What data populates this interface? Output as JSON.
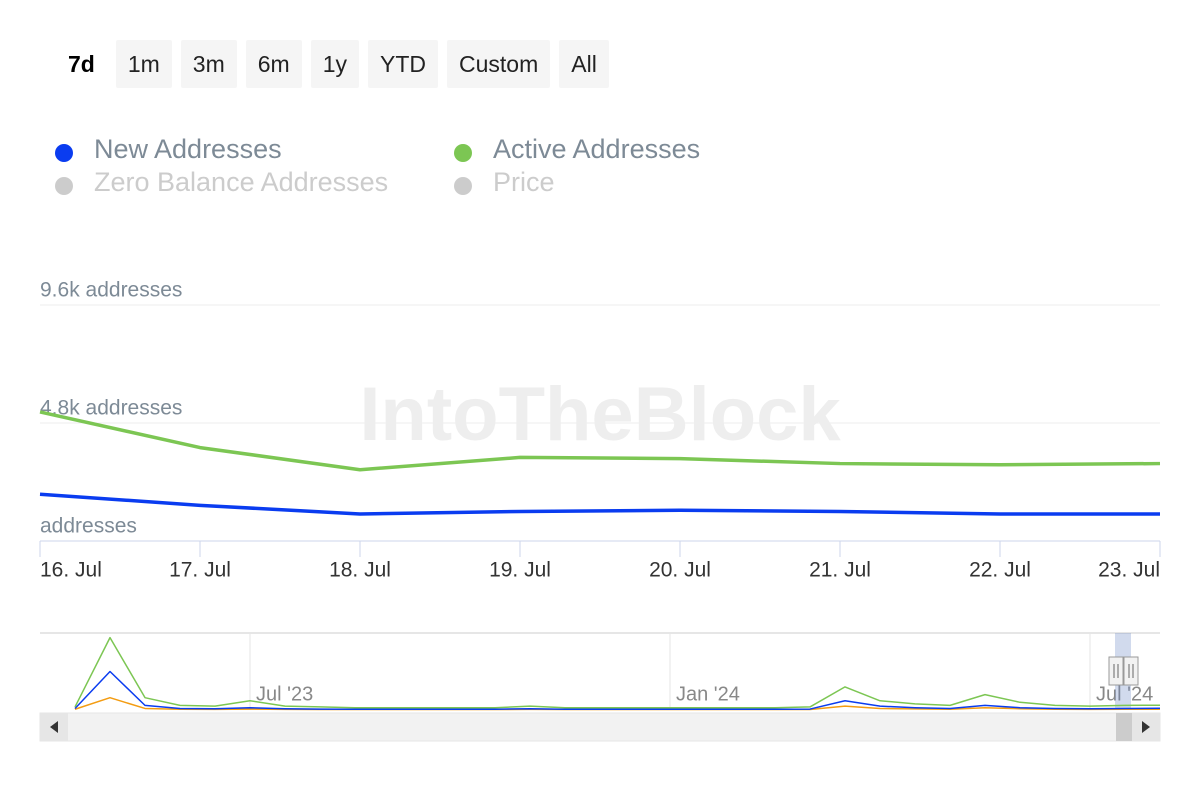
{
  "range_selector": {
    "buttons": [
      "7d",
      "1m",
      "3m",
      "6m",
      "1y",
      "YTD",
      "Custom",
      "All"
    ],
    "selected": 0
  },
  "chart_data": [
    {
      "type": "line",
      "watermark": "IntoTheBlock",
      "categories": [
        "16. Jul",
        "17. Jul",
        "18. Jul",
        "19. Jul",
        "20. Jul",
        "21. Jul",
        "22. Jul",
        "23. Jul"
      ],
      "series": [
        {
          "name": "New Addresses",
          "color": "#0a3cf0",
          "values": [
            1900,
            1450,
            1100,
            1200,
            1250,
            1200,
            1100,
            1100
          ]
        },
        {
          "name": "Active Addresses",
          "color": "#7cc653",
          "values": [
            5250,
            3800,
            2900,
            3400,
            3350,
            3150,
            3100,
            3150
          ]
        }
      ],
      "hidden_series": [
        {
          "name": "Zero Balance Addresses",
          "color": "#cccccc"
        },
        {
          "name": "Price",
          "color": "#cccccc"
        }
      ],
      "ylim": [
        0,
        9600
      ],
      "yticks": [
        {
          "value": 0,
          "label": "addresses"
        },
        {
          "value": 4800,
          "label": "4.8k addresses"
        },
        {
          "value": 9600,
          "label": "9.6k addresses"
        }
      ],
      "grid": true
    },
    {
      "type": "line",
      "categories": [
        null,
        null,
        null,
        null,
        null,
        null,
        "Jul '23",
        null,
        null,
        null,
        null,
        null,
        null,
        null,
        null,
        null,
        null,
        null,
        "Jan '24",
        null,
        null,
        null,
        null,
        null,
        null,
        null,
        null,
        null,
        null,
        null,
        "Jul '24",
        null,
        null
      ],
      "series": [
        {
          "color": "#f39c12",
          "values": [
            null,
            500,
            8000,
            1000,
            500,
            400,
            600,
            400,
            300,
            300,
            300,
            300,
            300,
            300,
            400,
            300,
            300,
            300,
            300,
            300,
            300,
            300,
            300,
            2500,
            1000,
            700,
            500,
            1500,
            800,
            500,
            400,
            500,
            500
          ]
        },
        {
          "color": "#0a3cf0",
          "values": [
            null,
            1000,
            25000,
            3000,
            1000,
            800,
            1500,
            800,
            600,
            500,
            500,
            500,
            500,
            500,
            800,
            500,
            500,
            500,
            500,
            500,
            500,
            500,
            600,
            6000,
            2500,
            1500,
            1000,
            3000,
            1500,
            1000,
            800,
            1000,
            1100
          ]
        },
        {
          "color": "#7cc653",
          "values": [
            null,
            2000,
            47000,
            8000,
            3000,
            2500,
            6000,
            2500,
            2000,
            1500,
            1500,
            1500,
            1500,
            1500,
            2500,
            1500,
            1500,
            1500,
            1500,
            1500,
            1500,
            1500,
            2000,
            15000,
            6000,
            4000,
            3000,
            10000,
            5000,
            3000,
            2500,
            3000,
            3100
          ]
        }
      ],
      "ylim": [
        0,
        50000
      ]
    }
  ]
}
